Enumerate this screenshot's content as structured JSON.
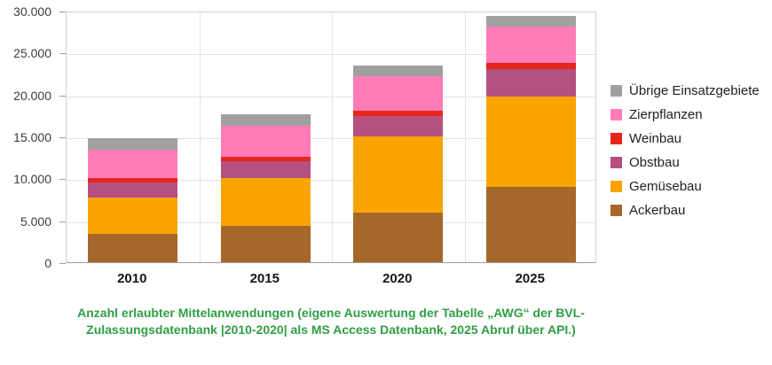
{
  "chart_data": {
    "type": "bar",
    "stacked": true,
    "categories": [
      "2010",
      "2015",
      "2020",
      "2025"
    ],
    "series": [
      {
        "name": "Ackerbau",
        "color": "#a6672a",
        "values": [
          3400,
          4300,
          5900,
          9000
        ]
      },
      {
        "name": "Gemüsebau",
        "color": "#f9a400",
        "values": [
          4300,
          5750,
          9100,
          10750
        ]
      },
      {
        "name": "Obstbau",
        "color": "#b5517f",
        "values": [
          1800,
          1950,
          2450,
          3250
        ]
      },
      {
        "name": "Weinbau",
        "color": "#e8251c",
        "values": [
          550,
          600,
          650,
          800
        ]
      },
      {
        "name": "Zierpflanzen",
        "color": "#ff7cb8",
        "values": [
          3400,
          3650,
          4100,
          4300
        ]
      },
      {
        "name": "Übrige Einsatzgebiete",
        "color": "#a0a0a0",
        "values": [
          1300,
          1400,
          1300,
          1300
        ]
      }
    ],
    "totals": [
      14750,
      17650,
      23500,
      29400
    ],
    "ylim": [
      0,
      30000
    ],
    "ytick_interval": 5000,
    "ytick_labels": [
      "0",
      "5.000",
      "10.000",
      "15.000",
      "20.000",
      "25.000",
      "30.000"
    ],
    "legend_position": "right",
    "legend_order_top_to_bottom": [
      "Übrige Einsatzgebiete",
      "Zierpflanzen",
      "Weinbau",
      "Obstbau",
      "Gemüsebau",
      "Ackerbau"
    ],
    "grid": true,
    "title": "",
    "xlabel": "",
    "ylabel": ""
  },
  "caption": {
    "lines": [
      "Anzahl erlaubter Mittelanwendungen (eigene Auswertung der Tabelle „AWG“ der BVL-",
      "Zulassungsdatenbank |2010-2020| als MS Access Datenbank, 2025 Abruf über API.)"
    ],
    "color": "#2f9e44"
  }
}
